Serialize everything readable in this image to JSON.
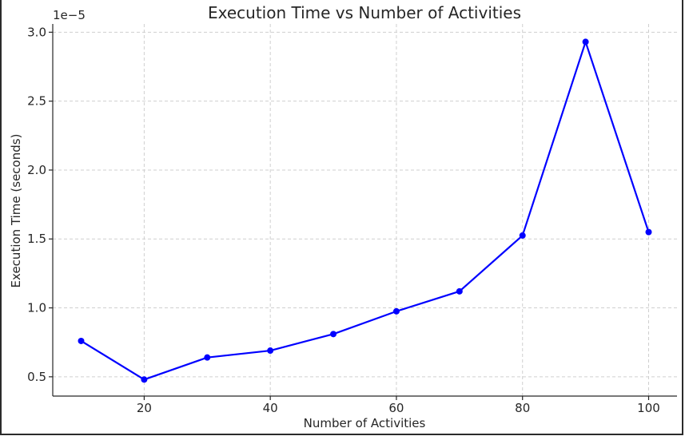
{
  "chart_data": {
    "type": "line",
    "title": "Execution Time vs Number of Activities",
    "xlabel": "Number of Activities",
    "ylabel": "Execution Time (seconds)",
    "y_offset_label": "1e−5",
    "xlim": [
      5.5,
      104.5
    ],
    "ylim": [
      0.36,
      3.06
    ],
    "x_ticks": [
      20,
      40,
      60,
      80,
      100
    ],
    "x_tick_labels": [
      "20",
      "40",
      "60",
      "80",
      "100"
    ],
    "y_ticks": [
      0.5,
      1.0,
      1.5,
      2.0,
      2.5,
      3.0
    ],
    "y_tick_labels": [
      "0.5",
      "1.0",
      "1.5",
      "2.0",
      "2.5",
      "3.0"
    ],
    "grid": true,
    "x": [
      10,
      20,
      30,
      40,
      50,
      60,
      70,
      80,
      90,
      100
    ],
    "series": [
      {
        "values": [
          0.76,
          0.48,
          0.64,
          0.69,
          0.81,
          0.975,
          1.12,
          1.525,
          2.93,
          1.55
        ],
        "color": "#0000ff"
      }
    ]
  }
}
